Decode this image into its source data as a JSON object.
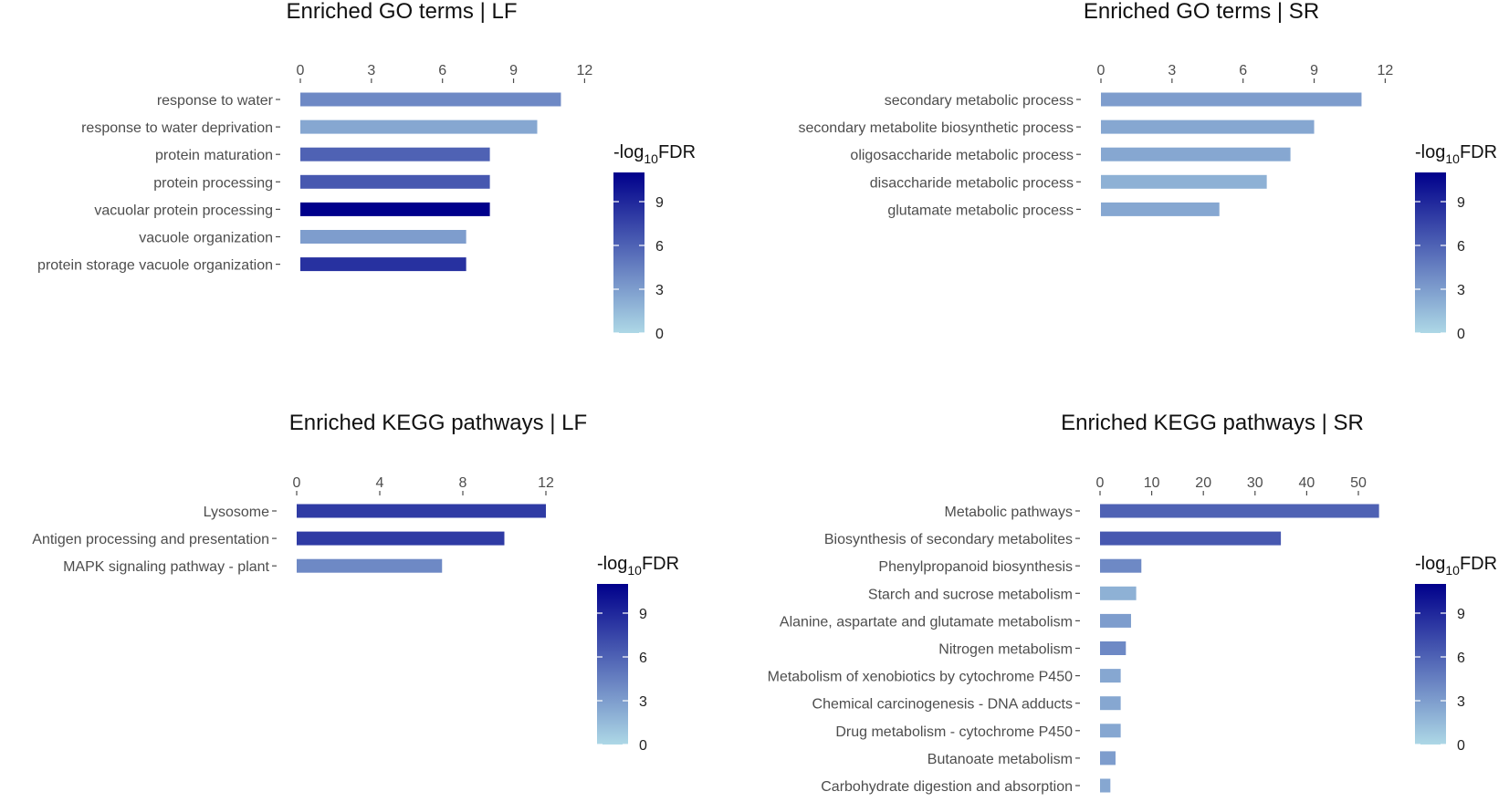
{
  "colors": {
    "low": "#ADD8E6",
    "high": "#00008B",
    "tick": "#4d4d4d",
    "text": "#111111"
  },
  "legend": {
    "title_prefix": "-log",
    "title_sub": "10",
    "title_suffix": "FDR",
    "ticks": [
      0,
      3,
      6,
      9
    ],
    "fill_range": [
      0,
      11
    ]
  },
  "chart_data": [
    {
      "type": "bar",
      "orientation": "horizontal",
      "title": "Enriched GO terms | LF",
      "xlabel": "",
      "ylabel": "",
      "xlim": [
        0,
        12
      ],
      "xticks": [
        0,
        3,
        6,
        9,
        12
      ],
      "categories": [
        "response to water",
        "response to water deprivation",
        "protein maturation",
        "protein processing",
        "vacuolar protein processing",
        "vacuole organization",
        "protein storage vacuole organization"
      ],
      "values": [
        11,
        10,
        8,
        8,
        8,
        7,
        7
      ],
      "fill_values": [
        4.0,
        2.5,
        6.0,
        6.5,
        11.0,
        3.0,
        8.5
      ]
    },
    {
      "type": "bar",
      "orientation": "horizontal",
      "title": "Enriched GO terms | SR",
      "xlabel": "",
      "ylabel": "",
      "xlim": [
        0,
        12
      ],
      "xticks": [
        0,
        3,
        6,
        9,
        12
      ],
      "categories": [
        "secondary metabolic process",
        "secondary metabolite biosynthetic process",
        "oligosaccharide metabolic process",
        "disaccharide metabolic process",
        "glutamate metabolic process"
      ],
      "values": [
        11,
        9,
        8,
        7,
        5
      ],
      "fill_values": [
        3.0,
        2.5,
        2.5,
        2.0,
        2.5
      ]
    },
    {
      "type": "bar",
      "orientation": "horizontal",
      "title": "Enriched KEGG pathways | LF",
      "xlabel": "",
      "ylabel": "",
      "xlim": [
        0,
        12
      ],
      "xticks": [
        0,
        4,
        8,
        12
      ],
      "categories": [
        "Lysosome",
        "Antigen processing and presentation",
        "MAPK signaling pathway - plant"
      ],
      "values": [
        12,
        10,
        7
      ],
      "fill_values": [
        8.0,
        8.0,
        4.0
      ]
    },
    {
      "type": "bar",
      "orientation": "horizontal",
      "title": "Enriched KEGG pathways | SR",
      "xlabel": "",
      "ylabel": "",
      "xlim": [
        0,
        54
      ],
      "xticks": [
        0,
        10,
        20,
        30,
        40,
        50
      ],
      "categories": [
        "Metabolic pathways",
        "Biosynthesis of secondary metabolites",
        "Phenylpropanoid biosynthesis",
        "Starch and sucrose metabolism",
        "Alanine, aspartate and glutamate metabolism",
        "Nitrogen metabolism",
        "Metabolism of xenobiotics by cytochrome P450",
        "Chemical carcinogenesis - DNA adducts",
        "Drug metabolism - cytochrome P450",
        "Butanoate metabolism",
        "Carbohydrate digestion and absorption"
      ],
      "values": [
        54,
        35,
        8,
        7,
        6,
        5,
        4,
        4,
        4,
        3,
        2
      ],
      "fill_values": [
        6.0,
        6.5,
        4.0,
        2.0,
        3.0,
        4.0,
        2.5,
        2.5,
        2.5,
        3.0,
        2.5
      ]
    }
  ]
}
